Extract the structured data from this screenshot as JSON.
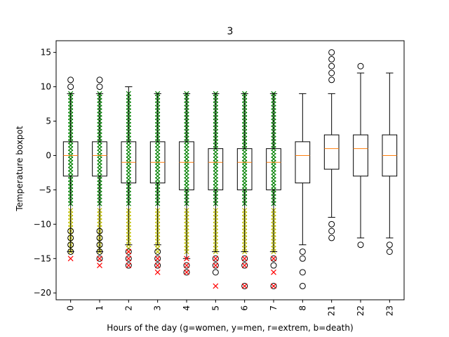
{
  "chart_data": {
    "type": "box",
    "title": "3",
    "xlabel": "Hours of the day (g=women, y=men, r=extrem, b=death)",
    "ylabel": "Temperature boxpot",
    "ylim": [
      -21,
      16.7
    ],
    "yticks": [
      -20,
      -15,
      -10,
      -5,
      0,
      5,
      10,
      15
    ],
    "categories": [
      "0",
      "1",
      "2",
      "3",
      "4",
      "5",
      "6",
      "7",
      "8",
      "21",
      "22",
      "23"
    ],
    "boxes": [
      {
        "q1": -3,
        "median": 0,
        "q3": 2,
        "wlo": -14,
        "whi": 9,
        "fliers_lo": [
          -14,
          -13,
          -12,
          -11
        ],
        "fliers_hi": [
          10,
          11
        ]
      },
      {
        "q1": -3,
        "median": 0,
        "q3": 2,
        "wlo": -14,
        "whi": 9,
        "fliers_lo": [
          -15,
          -14,
          -13,
          -12,
          -11
        ],
        "fliers_hi": [
          10,
          11
        ]
      },
      {
        "q1": -4,
        "median": -1,
        "q3": 2,
        "wlo": -13,
        "whi": 10,
        "fliers_lo": [
          -16,
          -15,
          -14
        ],
        "fliers_hi": []
      },
      {
        "q1": -4,
        "median": -1,
        "q3": 2,
        "wlo": -13,
        "whi": 9,
        "fliers_lo": [
          -16,
          -15,
          -14
        ],
        "fliers_hi": []
      },
      {
        "q1": -5,
        "median": -1,
        "q3": 2,
        "wlo": -15,
        "whi": 9,
        "fliers_lo": [
          -17,
          -16
        ],
        "fliers_hi": []
      },
      {
        "q1": -5,
        "median": -1,
        "q3": 1,
        "wlo": -14,
        "whi": 9,
        "fliers_lo": [
          -17,
          -16,
          -15
        ],
        "fliers_hi": []
      },
      {
        "q1": -5,
        "median": -1,
        "q3": 1,
        "wlo": -14,
        "whi": 9,
        "fliers_lo": [
          -19,
          -16,
          -15
        ],
        "fliers_hi": []
      },
      {
        "q1": -5,
        "median": -1,
        "q3": 1,
        "wlo": -14,
        "whi": 9,
        "fliers_lo": [
          -19,
          -16,
          -15
        ],
        "fliers_hi": []
      },
      {
        "q1": -4,
        "median": 0,
        "q3": 2,
        "wlo": -13,
        "whi": 9,
        "fliers_lo": [
          -19,
          -17,
          -15,
          -14
        ],
        "fliers_hi": []
      },
      {
        "q1": -2,
        "median": 1,
        "q3": 3,
        "wlo": -9,
        "whi": 9,
        "fliers_lo": [
          -12,
          -11,
          -10
        ],
        "fliers_hi": [
          11,
          12,
          13,
          14,
          15
        ]
      },
      {
        "q1": -3,
        "median": 1,
        "q3": 3,
        "wlo": -12,
        "whi": 12,
        "fliers_lo": [
          -13
        ],
        "fliers_hi": [
          13
        ]
      },
      {
        "q1": -3,
        "median": 0,
        "q3": 3,
        "wlo": -12,
        "whi": 12,
        "fliers_lo": [
          -14,
          -13
        ],
        "fliers_hi": []
      }
    ],
    "scatter": {
      "women": {
        "color": "#008000",
        "marker": "x",
        "category_range": [
          0,
          7
        ],
        "y_range": [
          -7,
          9
        ]
      },
      "men": {
        "color": "#bfbf00",
        "marker": "x",
        "category_range": [
          0,
          7
        ],
        "y_range": [
          -14,
          -8
        ]
      },
      "extreme": {
        "color": "#ff0000",
        "marker": "x",
        "points": [
          [
            0,
            -15
          ],
          [
            1,
            -16
          ],
          [
            1,
            -15
          ],
          [
            2,
            -16
          ],
          [
            2,
            -15
          ],
          [
            2,
            -14
          ],
          [
            3,
            -17
          ],
          [
            3,
            -16
          ],
          [
            3,
            -15
          ],
          [
            4,
            -17
          ],
          [
            4,
            -16
          ],
          [
            4,
            -15
          ],
          [
            5,
            -19
          ],
          [
            5,
            -16
          ],
          [
            5,
            -15
          ],
          [
            6,
            -19
          ],
          [
            6,
            -16
          ],
          [
            6,
            -15
          ],
          [
            7,
            -19
          ],
          [
            7,
            -17
          ],
          [
            7,
            -15
          ]
        ]
      }
    },
    "grid": false,
    "legend": "none"
  }
}
